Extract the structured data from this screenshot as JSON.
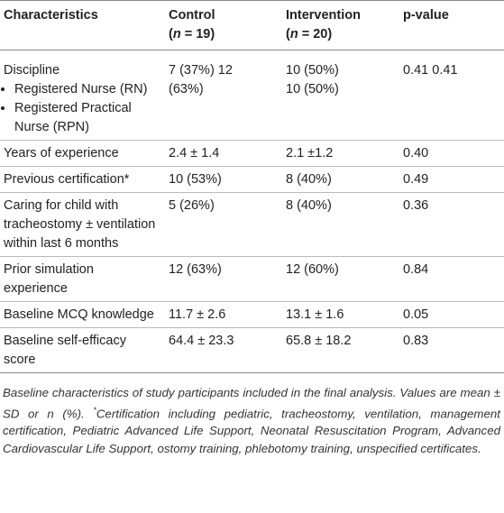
{
  "table": {
    "header": [
      {
        "title": "Characteristics"
      },
      {
        "title": "Control",
        "subtitle": [
          "(",
          "n",
          " = 19)"
        ]
      },
      {
        "title": "Intervention",
        "subtitle": [
          "(",
          "n",
          " = 20)"
        ]
      },
      {
        "title": "p-value"
      }
    ],
    "rows": [
      {
        "label": "Discipline",
        "items": [
          "Registered Nurse (RN)",
          "Registered Practical Nurse (RPN)"
        ],
        "cells": [
          [
            "7 (37%) 12 (63%)"
          ],
          [
            "10 (50%)",
            "10 (50%)"
          ],
          [
            " 0.41 0.41"
          ]
        ]
      },
      {
        "label": "Years of experience",
        "cells": [
          [
            "2.4 ± 1.4"
          ],
          [
            "2.1 ±1.2"
          ],
          [
            "0.40"
          ]
        ]
      },
      {
        "label": "Previous certification*",
        "cells": [
          [
            "10 (53%)"
          ],
          [
            "8 (40%)"
          ],
          [
            "0.49"
          ]
        ]
      },
      {
        "label": "Caring for child with tracheostomy ± ventilation within last 6 months",
        "cells": [
          [
            "5 (26%)"
          ],
          [
            "8 (40%)"
          ],
          [
            "0.36"
          ]
        ]
      },
      {
        "label": "Prior simulation experience",
        "cells": [
          [
            "12 (63%)"
          ],
          [
            "12 (60%)"
          ],
          [
            "0.84"
          ]
        ]
      },
      {
        "label": "Baseline MCQ knowledge",
        "cells": [
          [
            "11.7 ± 2.6"
          ],
          [
            "13.1 ± 1.6"
          ],
          [
            "0.05"
          ]
        ]
      },
      {
        "label": "Baseline self-efficacy score",
        "cells": [
          [
            "64.4 ± 23.3"
          ],
          [
            "65.8 ± 18.2"
          ],
          [
            "0.83"
          ]
        ]
      }
    ],
    "note": {
      "text": "Baseline characteristics of study participants included in the final analysis. Values are mean ± SD or n (%). ",
      "mark": "*",
      "detail": "Certification including pediatric, tracheostomy, ventilation, management certification, Pediatric Advanced Life Support, Neonatal Resuscitation Program, Advanced Cardiovascular Life Support, ostomy training, phlebotomy training, unspecified certificates."
    }
  }
}
